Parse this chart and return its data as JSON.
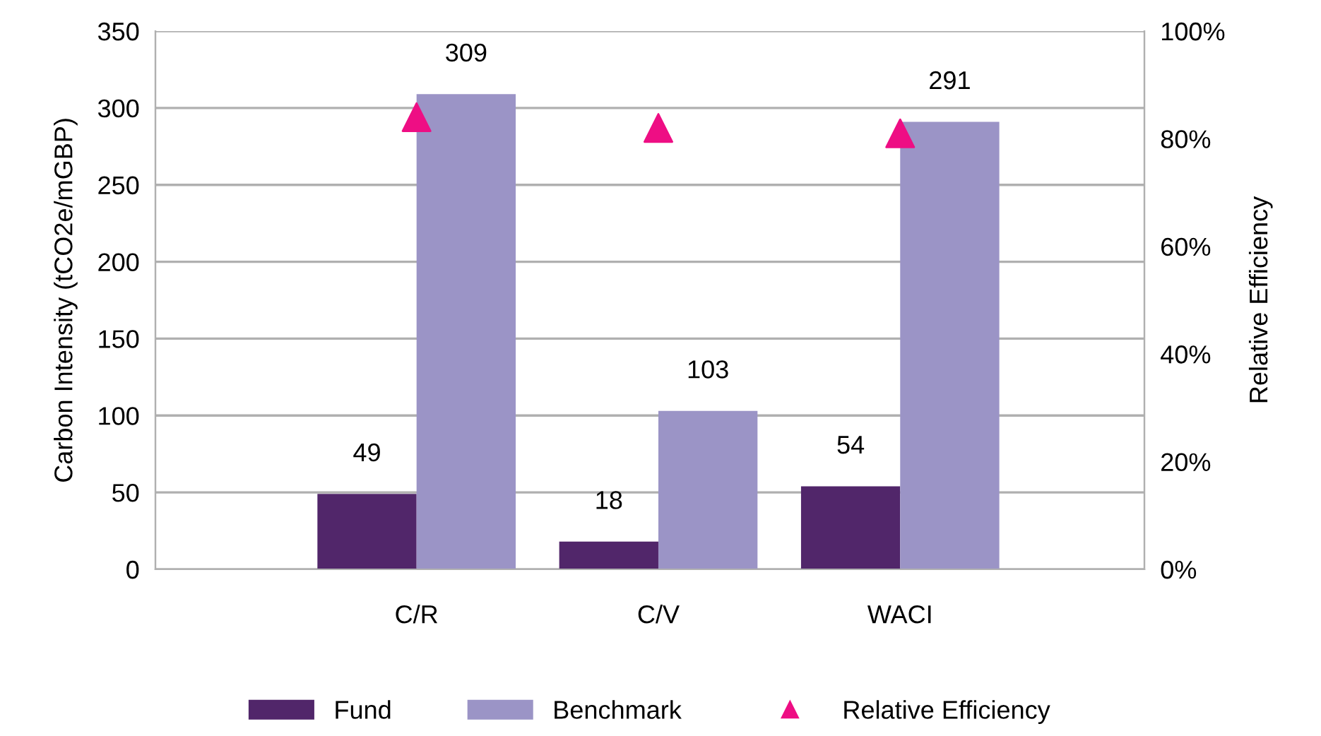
{
  "chart_data": {
    "type": "bar",
    "ylabel": "Carbon Intensity (tCO2e/mGBP)",
    "y2label": "Relative Efficiency",
    "categories": [
      "C/R",
      "C/V",
      "WACI"
    ],
    "series": [
      {
        "name": "Fund",
        "color": "#51266a",
        "values": [
          49,
          18,
          54
        ],
        "value_labels": [
          "49",
          "18",
          "54"
        ]
      },
      {
        "name": "Benchmark",
        "color": "#9b94c6",
        "values": [
          309,
          103,
          291
        ],
        "value_labels": [
          "309",
          "103",
          "291"
        ]
      },
      {
        "name": "Relative Efficiency",
        "type": "scatter",
        "axis": "y2",
        "marker": "triangle",
        "color": "#ee0e84",
        "values": [
          84,
          82,
          81
        ]
      }
    ],
    "ylim": [
      0,
      350
    ],
    "yticks": [
      0,
      50,
      100,
      150,
      200,
      250,
      300,
      350
    ],
    "y2lim": [
      0,
      100
    ],
    "y2ticks": [
      {
        "value": 0,
        "label": "0%"
      },
      {
        "value": 20,
        "label": "20%"
      },
      {
        "value": 40,
        "label": "40%"
      },
      {
        "value": 60,
        "label": "60%"
      },
      {
        "value": 80,
        "label": "80%"
      },
      {
        "value": 100,
        "label": "100%"
      }
    ],
    "grid": "y",
    "legend": "bottom"
  }
}
